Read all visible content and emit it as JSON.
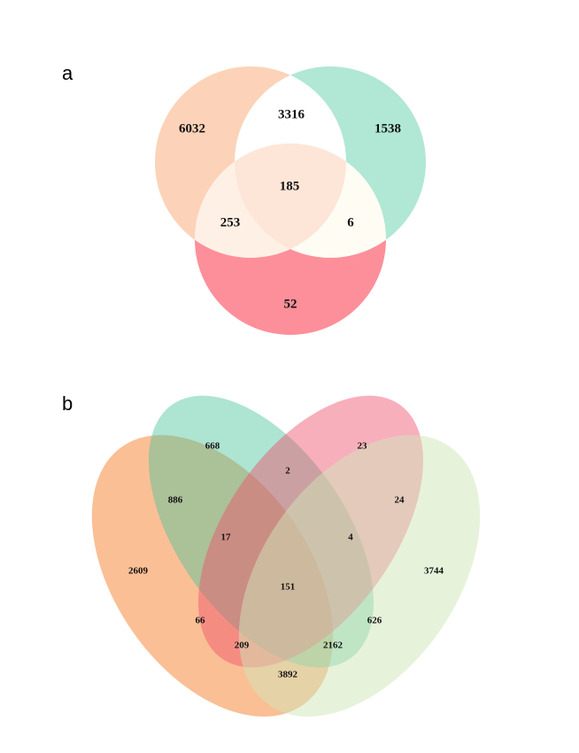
{
  "panels": [
    {
      "label": "a",
      "regions": [
        6032,
        3316,
        1538,
        185,
        253,
        6,
        52
      ]
    },
    {
      "label": "b",
      "regions": [
        668,
        23,
        2,
        886,
        24,
        17,
        4,
        2609,
        3744,
        151,
        66,
        626,
        209,
        2162,
        3892
      ]
    }
  ]
}
